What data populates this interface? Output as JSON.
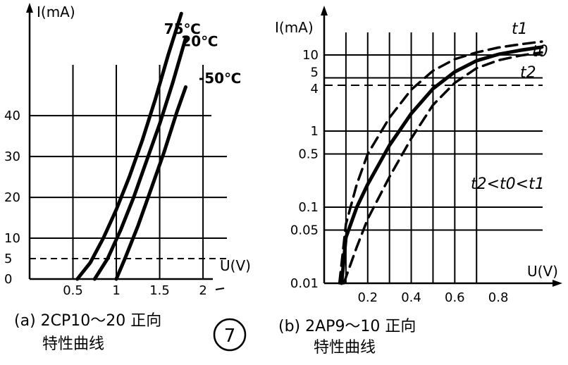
{
  "chart_data": [
    {
      "id": "a",
      "type": "line",
      "ylabel": "I(mA)",
      "xlabel": "U(V)",
      "x_ticks": [
        0.5,
        1,
        1.5,
        2
      ],
      "x_tick_labels": [
        "0.5",
        "1",
        "1.5",
        "2"
      ],
      "y_ticks": [
        0,
        5,
        10,
        20,
        30,
        40
      ],
      "y_tick_labels": [
        "0",
        "5",
        "10",
        "20",
        "30",
        "40"
      ],
      "xlim": [
        0,
        2.3
      ],
      "ylim": [
        0,
        64
      ],
      "grid": true,
      "series": [
        {
          "name": "75℃",
          "label_anchor": [
            1.55,
            60
          ],
          "x": [
            0.55,
            0.7,
            0.85,
            1.0,
            1.15,
            1.3,
            1.45,
            1.6,
            1.75
          ],
          "y": [
            0,
            4,
            10,
            17,
            25,
            34,
            44,
            55,
            65
          ]
        },
        {
          "name": "20℃",
          "label_anchor": [
            1.75,
            57
          ],
          "x": [
            0.75,
            0.9,
            1.05,
            1.2,
            1.35,
            1.5,
            1.65,
            1.8
          ],
          "y": [
            0,
            5,
            12,
            20,
            29,
            38,
            48,
            59
          ]
        },
        {
          "name": "-50℃",
          "label_anchor": [
            1.95,
            48
          ],
          "x": [
            1.0,
            1.1,
            1.25,
            1.4,
            1.55,
            1.7,
            1.8
          ],
          "y": [
            0,
            5,
            13,
            22,
            31,
            41,
            47
          ]
        }
      ]
    },
    {
      "id": "b",
      "type": "line",
      "ylabel": "I(mA)",
      "xlabel": "U(V)",
      "y_scale": "log",
      "x_ticks": [
        0.2,
        0.4,
        0.6,
        0.8
      ],
      "x_tick_labels": [
        "0.2",
        "0.4",
        "0.6",
        "0.8"
      ],
      "y_ticks": [
        0.01,
        0.05,
        0.1,
        0.5,
        1,
        4,
        5,
        10
      ],
      "y_tick_labels": [
        "0.01",
        "0.05",
        "0.1",
        "0.5",
        "1",
        "4",
        "5",
        "10"
      ],
      "xlim": [
        0,
        1.03
      ],
      "ylim": [
        0.01,
        30
      ],
      "grid": true,
      "annotation": "t2<t0<t1",
      "series": [
        {
          "name": "t1",
          "style": "dashed",
          "x": [
            0.07,
            0.1,
            0.15,
            0.2,
            0.3,
            0.4,
            0.5,
            0.6,
            0.7,
            0.8,
            0.9,
            1.0
          ],
          "y": [
            0.01,
            0.06,
            0.2,
            0.5,
            1.5,
            3.5,
            6.2,
            8.8,
            10.8,
            12.5,
            13.8,
            15
          ]
        },
        {
          "name": "t0",
          "style": "solid",
          "x": [
            0.08,
            0.1,
            0.15,
            0.2,
            0.3,
            0.4,
            0.5,
            0.6,
            0.7,
            0.8,
            0.9,
            1.0
          ],
          "y": [
            0.01,
            0.04,
            0.1,
            0.2,
            0.65,
            1.7,
            3.6,
            6.0,
            8.4,
            10.2,
            11.5,
            12.7
          ]
        },
        {
          "name": "t2",
          "style": "dashed",
          "x": [
            0.09,
            0.15,
            0.2,
            0.3,
            0.4,
            0.5,
            0.6,
            0.7,
            0.8,
            0.9,
            1.0
          ],
          "y": [
            0.01,
            0.03,
            0.07,
            0.25,
            0.8,
            2.2,
            4.3,
            6.7,
            8.5,
            9.8,
            10.8
          ]
        }
      ]
    }
  ],
  "captions": {
    "a_line1": "(a) 2CP10～20 正向",
    "a_line2": "特性曲线",
    "b_line1": "(b) 2AP9～10 正向",
    "b_line2": "特性曲线",
    "figure_number": "7"
  }
}
